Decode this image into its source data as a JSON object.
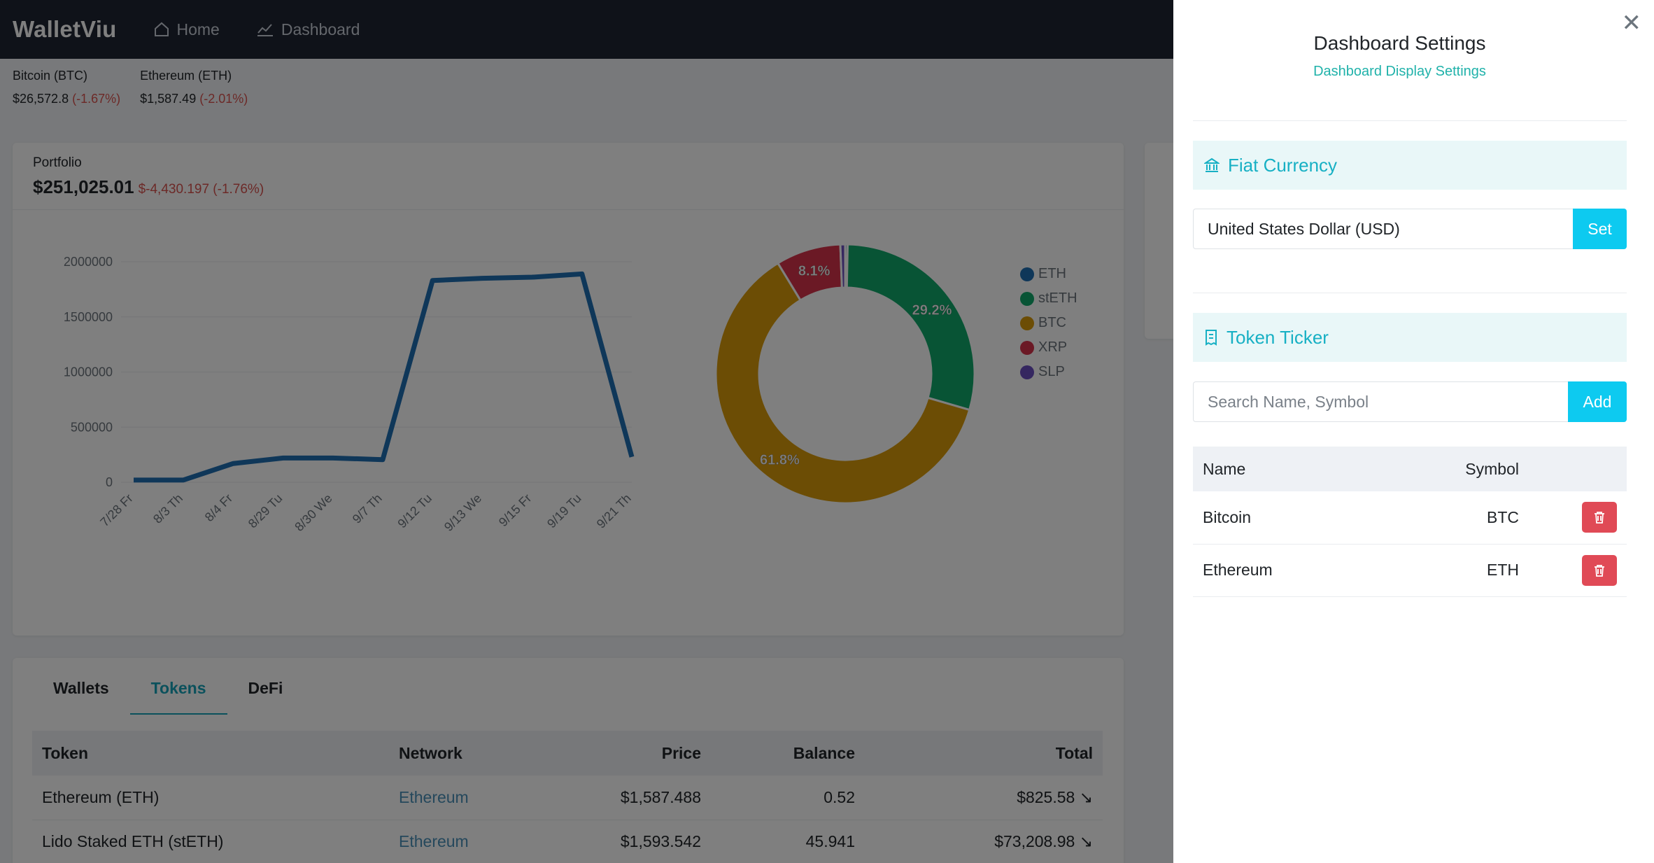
{
  "nav": {
    "brand": "WalletViu",
    "home": "Home",
    "dashboard": "Dashboard"
  },
  "ticker": [
    {
      "name": "Bitcoin (BTC)",
      "price": "$26,572.8",
      "change": "(-1.67%)"
    },
    {
      "name": "Ethereum (ETH)",
      "price": "$1,587.49",
      "change": "(-2.01%)"
    }
  ],
  "portfolio": {
    "label": "Portfolio",
    "value": "$251,025.01",
    "change": "$-4,430.197 (-1.76%)"
  },
  "chart_data": [
    {
      "type": "line",
      "categories": [
        "7/28 Fr",
        "8/3 Th",
        "8/4 Fr",
        "8/29 Tu",
        "8/30 We",
        "9/7 Th",
        "9/12 Tu",
        "9/13 We",
        "9/15 Fr",
        "9/19 Tu",
        "9/21 Th"
      ],
      "series": [
        {
          "values": [
            20000,
            20000,
            170000,
            220000,
            220000,
            205000,
            1830000,
            1850000,
            1860000,
            1890000,
            230000
          ]
        }
      ],
      "ylim": [
        0,
        2000000
      ],
      "yticks": [
        "0",
        "500000",
        "1000000",
        "1500000",
        "2000000"
      ],
      "color": "#1f6fb2",
      "grid": true
    },
    {
      "type": "pie",
      "labels": [
        "ETH",
        "stETH",
        "BTC",
        "XRP",
        "SLP"
      ],
      "values": [
        0.3,
        29.2,
        61.8,
        8.1,
        0.6
      ],
      "display_labels": [
        "",
        "29.2%",
        "61.8%",
        "8.1%",
        ""
      ],
      "colors": [
        "#1f6fb2",
        "#10a96b",
        "#d99a0b",
        "#d6334a",
        "#6a4fc1"
      ],
      "legend": "right"
    }
  ],
  "tabs": [
    "Wallets",
    "Tokens",
    "DeFi"
  ],
  "tokens": {
    "headers": [
      "Token",
      "Network",
      "Price",
      "Balance",
      "Total"
    ],
    "rows": [
      [
        "Ethereum (ETH)",
        "Ethereum",
        "$1,587.488",
        "0.52",
        "$825.58"
      ],
      [
        "Lido Staked ETH (stETH)",
        "Ethereum",
        "$1,593.542",
        "45.941",
        "$73,208.98"
      ]
    ]
  },
  "settings": {
    "title": "Dashboard Settings",
    "subtitle": "Dashboard Display Settings",
    "fiat_title": "Fiat Currency",
    "fiat_value": "United States Dollar (USD)",
    "set_label": "Set",
    "ticker_title": "Token Ticker",
    "search_placeholder": "Search Name, Symbol",
    "add_label": "Add",
    "table_headers": [
      "Name",
      "Symbol"
    ],
    "table_rows": [
      [
        "Bitcoin",
        "BTC"
      ],
      [
        "Ethereum",
        "ETH"
      ]
    ]
  },
  "colors": {
    "accent": "#17b0c4",
    "button": "#0dcaf0",
    "danger": "#e04a56",
    "nav_bg": "#1e2433"
  }
}
